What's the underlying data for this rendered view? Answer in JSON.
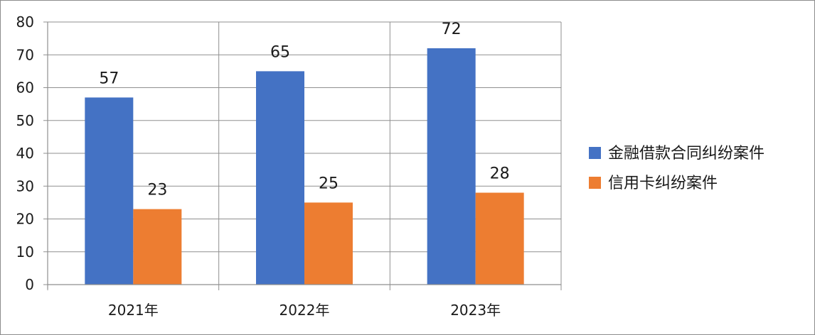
{
  "chart_data": {
    "type": "bar",
    "categories": [
      "2021年",
      "2022年",
      "2023年"
    ],
    "series": [
      {
        "name": "金融借款合同纠纷案件",
        "values": [
          57,
          65,
          72
        ],
        "color": "#4472C4"
      },
      {
        "name": "信用卡纠纷案件",
        "values": [
          23,
          25,
          28
        ],
        "color": "#ED7D31"
      }
    ],
    "ylim": [
      0,
      80
    ],
    "yticks": [
      0,
      10,
      20,
      30,
      40,
      50,
      60,
      70,
      80
    ],
    "grid": true,
    "legend_position": "right",
    "data_labels": true
  }
}
